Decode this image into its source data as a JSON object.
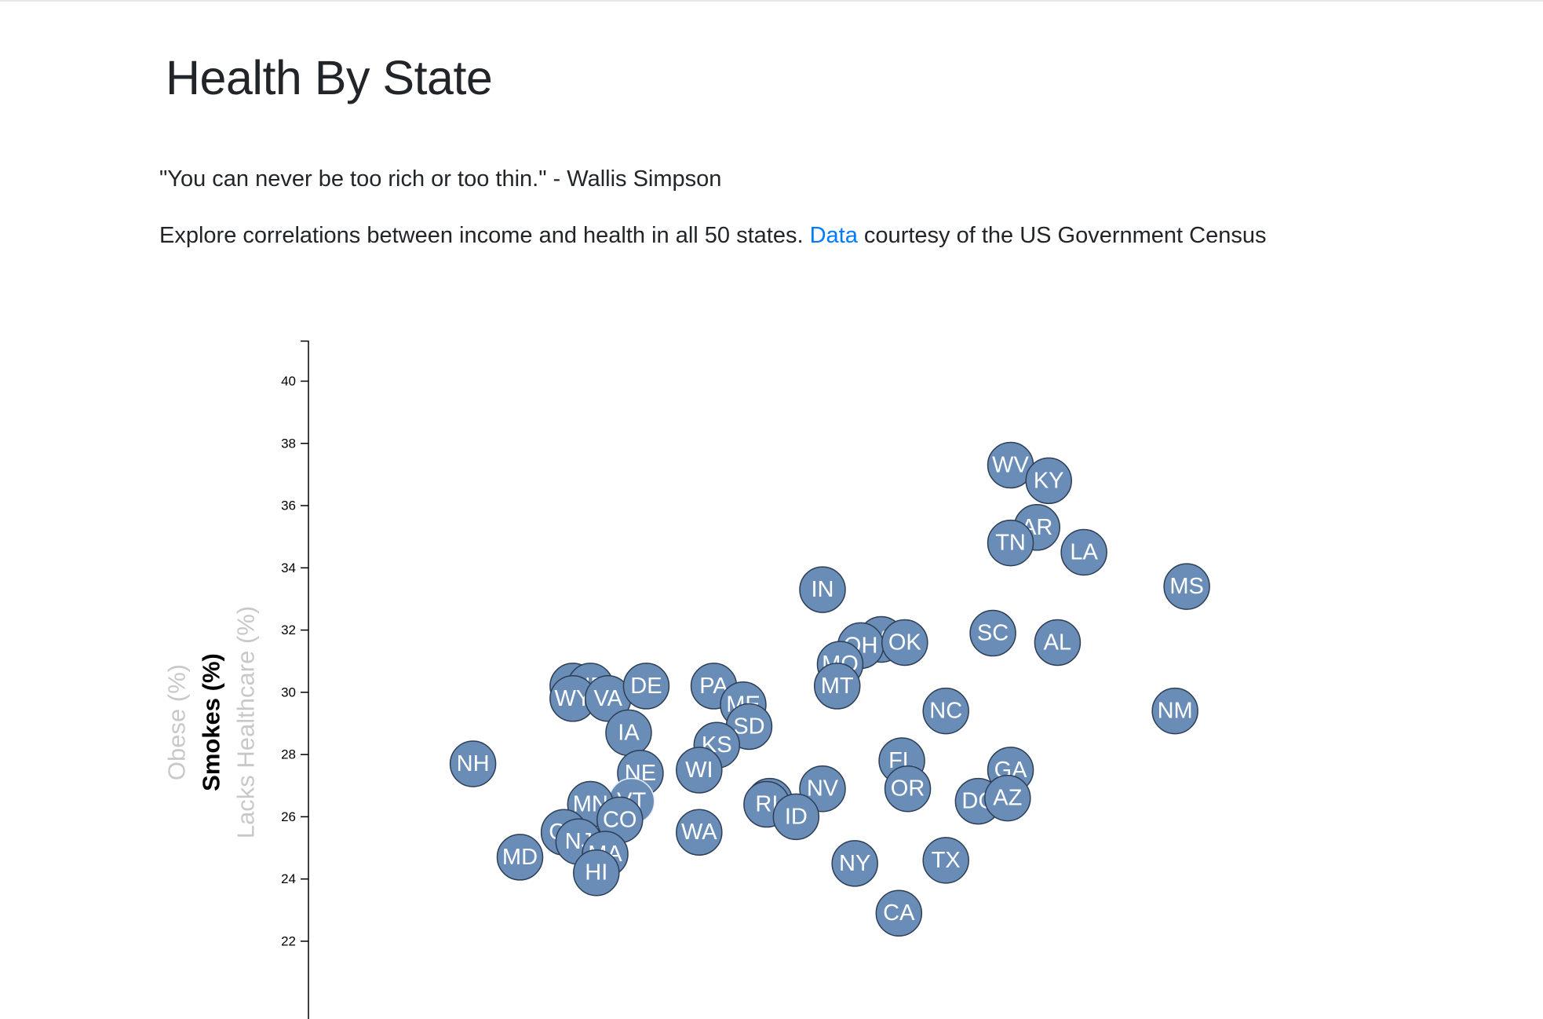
{
  "page": {
    "title": "Health By State",
    "quote": "\"You can never be too rich or too thin.\" - Wallis Simpson",
    "intro_before": "Explore correlations between income and health in all 50 states. ",
    "link_text": "Data",
    "intro_after": " courtesy of the US Government Census"
  },
  "colors": {
    "point_fill": "#6a8db8",
    "point_stroke": "#2d3e55",
    "link": "#007bff",
    "inactive_label": "#c8c8c8"
  },
  "chart_data": {
    "type": "scatter",
    "ylabels": [
      {
        "text": "Obese (%)",
        "active": false
      },
      {
        "text": "Smokes (%)",
        "active": true
      },
      {
        "text": "Lacks Healthcare (%)",
        "active": false
      }
    ],
    "ylim": [
      19.5,
      41.3
    ],
    "y_ticks": [
      22,
      24,
      26,
      28,
      30,
      32,
      34,
      36,
      38,
      40
    ],
    "points": [
      {
        "label": "WV",
        "x": 44.9,
        "y": 37.3
      },
      {
        "label": "KY",
        "x": 46.2,
        "y": 36.8
      },
      {
        "label": "AR",
        "x": 45.8,
        "y": 35.3
      },
      {
        "label": "TN",
        "x": 44.9,
        "y": 34.8
      },
      {
        "label": "LA",
        "x": 47.4,
        "y": 34.5
      },
      {
        "label": "MS",
        "x": 50.9,
        "y": 33.4
      },
      {
        "label": "IN",
        "x": 38.5,
        "y": 33.3
      },
      {
        "label": "SC",
        "x": 44.3,
        "y": 31.9
      },
      {
        "label": "AL",
        "x": 46.5,
        "y": 31.6
      },
      {
        "label": "MI",
        "x": 40.5,
        "y": 31.7
      },
      {
        "label": "OH",
        "x": 39.8,
        "y": 31.5
      },
      {
        "label": "OK",
        "x": 41.3,
        "y": 31.6
      },
      {
        "label": "MO",
        "x": 39.1,
        "y": 30.9
      },
      {
        "label": "MT",
        "x": 39.0,
        "y": 30.2
      },
      {
        "label": "AK",
        "x": 30.0,
        "y": 30.2
      },
      {
        "label": "ND",
        "x": 30.6,
        "y": 30.2
      },
      {
        "label": "WY",
        "x": 30.0,
        "y": 29.8
      },
      {
        "label": "VA",
        "x": 31.2,
        "y": 29.8
      },
      {
        "label": "DE",
        "x": 32.5,
        "y": 30.2
      },
      {
        "label": "PA",
        "x": 34.8,
        "y": 30.2
      },
      {
        "label": "ME",
        "x": 35.8,
        "y": 29.6
      },
      {
        "label": "SD",
        "x": 36.0,
        "y": 28.9
      },
      {
        "label": "NC",
        "x": 42.7,
        "y": 29.4
      },
      {
        "label": "NM",
        "x": 50.5,
        "y": 29.4
      },
      {
        "label": "IA",
        "x": 31.9,
        "y": 28.7
      },
      {
        "label": "KS",
        "x": 34.9,
        "y": 28.3
      },
      {
        "label": "NH",
        "x": 26.6,
        "y": 27.7
      },
      {
        "label": "FL",
        "x": 41.2,
        "y": 27.8
      },
      {
        "label": "GA",
        "x": 44.9,
        "y": 27.5
      },
      {
        "label": "NE",
        "x": 32.3,
        "y": 27.4
      },
      {
        "label": "WI",
        "x": 34.3,
        "y": 27.5
      },
      {
        "label": "NV",
        "x": 38.5,
        "y": 26.9
      },
      {
        "label": "OR",
        "x": 41.4,
        "y": 26.9
      },
      {
        "label": "VT",
        "x": 32.0,
        "y": 26.5
      },
      {
        "label": "MN",
        "x": 30.6,
        "y": 26.4
      },
      {
        "label": "IL",
        "x": 36.7,
        "y": 26.5
      },
      {
        "label": "RI",
        "x": 36.6,
        "y": 26.4
      },
      {
        "label": "DC",
        "x": 43.8,
        "y": 26.5
      },
      {
        "label": "AZ",
        "x": 44.8,
        "y": 26.6
      },
      {
        "label": "ID",
        "x": 37.6,
        "y": 26.0
      },
      {
        "label": "CO",
        "x": 31.6,
        "y": 25.9
      },
      {
        "label": "CT",
        "x": 29.7,
        "y": 25.5
      },
      {
        "label": "NJ",
        "x": 30.2,
        "y": 25.2
      },
      {
        "label": "WA",
        "x": 34.3,
        "y": 25.5
      },
      {
        "label": "MA",
        "x": 31.1,
        "y": 24.8
      },
      {
        "label": "MD",
        "x": 28.2,
        "y": 24.7
      },
      {
        "label": "HI",
        "x": 30.8,
        "y": 24.2
      },
      {
        "label": "NY",
        "x": 39.6,
        "y": 24.5
      },
      {
        "label": "TX",
        "x": 42.7,
        "y": 24.6
      },
      {
        "label": "CA",
        "x": 41.1,
        "y": 22.9
      }
    ]
  }
}
